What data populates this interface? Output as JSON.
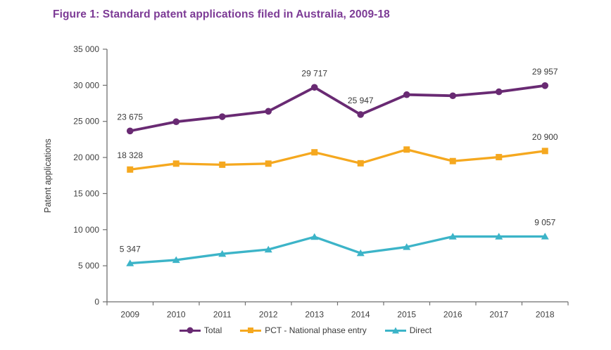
{
  "chart_data": {
    "type": "line",
    "title": "Figure 1: Standard patent applications filed in Australia, 2009-18",
    "xlabel": "",
    "ylabel": "Patent applications",
    "x": [
      "2009",
      "2010",
      "2011",
      "2012",
      "2013",
      "2014",
      "2015",
      "2016",
      "2017",
      "2018"
    ],
    "series": [
      {
        "name": "Total",
        "color": "#692a73",
        "marker": "circle",
        "values": [
          23675,
          24950,
          25650,
          26400,
          29717,
          25947,
          28700,
          28550,
          29100,
          29957
        ]
      },
      {
        "name": "PCT - National phase entry",
        "color": "#F5A81F",
        "marker": "square",
        "values": [
          18328,
          19150,
          19000,
          19150,
          20717,
          19197,
          21100,
          19500,
          20050,
          20900
        ]
      },
      {
        "name": "Direct",
        "color": "#3CB4C8",
        "marker": "triangle",
        "values": [
          5347,
          5800,
          6650,
          7250,
          9000,
          6750,
          7600,
          9050,
          9050,
          9057
        ]
      }
    ],
    "ylim": [
      0,
      35000
    ],
    "ytick_interval": 5000,
    "ytick_labels": [
      "0",
      "5 000",
      "10 000",
      "15 000",
      "20 000",
      "25 000",
      "30 000",
      "35 000"
    ],
    "grid": false,
    "legend_position": "bottom",
    "annotations": [
      {
        "series": "Total",
        "year": "2009",
        "label": "23 675"
      },
      {
        "series": "Total",
        "year": "2013",
        "label": "29 717"
      },
      {
        "series": "Total",
        "year": "2014",
        "label": "25 947"
      },
      {
        "series": "Total",
        "year": "2018",
        "label": "29 957"
      },
      {
        "series": "PCT - National phase entry",
        "year": "2009",
        "label": "18 328"
      },
      {
        "series": "PCT - National phase entry",
        "year": "2018",
        "label": "20 900"
      },
      {
        "series": "Direct",
        "year": "2009",
        "label": "5 347"
      },
      {
        "series": "Direct",
        "year": "2018",
        "label": "9 057"
      }
    ],
    "colors": {
      "title": "#7c3a95",
      "axis": "#707070",
      "tick_text": "#3f3f3f",
      "label_text": "#3a3a3a",
      "background": "#ffffff"
    }
  }
}
